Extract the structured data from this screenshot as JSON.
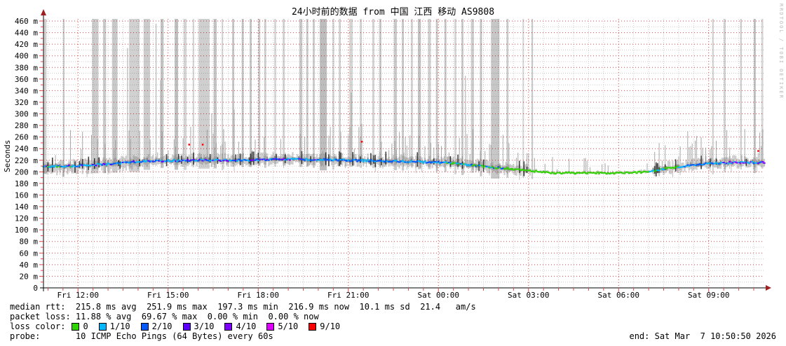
{
  "title": "24小时前的数据 from 中国 江西 移动 AS9808",
  "watermark": "RRDTOOL / TOBI OETIKER",
  "stats": {
    "median_line": "median rtt:  215.8 ms avg  251.9 ms max  197.3 ms min  216.9 ms now  10.1 ms sd  21.4   am/s",
    "loss_line": "packet loss: 11.88 % avg  69.67 % max  0.00 % min  0.00 % now",
    "loss_color_label": "loss color:",
    "probe_line": "probe:       10 ICMP Echo Pings (64 Bytes) every 60s",
    "end_label": "end: Sat Mar  7 10:50:50 2026"
  },
  "loss_legend": [
    {
      "label": "0",
      "color": "#2fd300"
    },
    {
      "label": "1/10",
      "color": "#00b8ff"
    },
    {
      "label": "2/10",
      "color": "#0059ff"
    },
    {
      "label": "3/10",
      "color": "#5e00ff"
    },
    {
      "label": "4/10",
      "color": "#7e00ff"
    },
    {
      "label": "5/10",
      "color": "#dd00ff"
    },
    {
      "label": "9/10",
      "color": "#ff0000"
    }
  ],
  "chart_data": {
    "type": "line",
    "title": "24小时前的数据 from 中国 江西 移动 AS9808",
    "ylabel": "Seconds",
    "unit": "ms",
    "ylim_ms": [
      0,
      465
    ],
    "y_tick_step_ms": 20,
    "y_tick_labels": [
      "0",
      "20 m",
      "40 m",
      "60 m",
      "80 m",
      "100 m",
      "120 m",
      "140 m",
      "160 m",
      "180 m",
      "200 m",
      "220 m",
      "240 m",
      "260 m",
      "280 m",
      "300 m",
      "320 m",
      "340 m",
      "360 m",
      "380 m",
      "400 m",
      "420 m",
      "440 m",
      "460 m"
    ],
    "x_span_min": 1440,
    "x_first_major_min": 69,
    "x_major_interval_min": 180,
    "x_minor_interval_min": 30,
    "x_tick_labels": [
      "Fri 12:00",
      "Fri 15:00",
      "Fri 18:00",
      "Fri 21:00",
      "Sat 00:00",
      "Sat 03:00",
      "Sat 06:00",
      "Sat 09:00"
    ],
    "grid": {
      "major_color": "#dd4444",
      "minor_color": "#cccccc",
      "axis_color": "#000000",
      "arrow_color": "#a02020"
    },
    "stats_summary": {
      "median_rtt_ms": {
        "avg": 215.8,
        "max": 251.9,
        "min": 197.3,
        "now": 216.9,
        "sd": 10.1
      },
      "packet_loss_pct": {
        "avg": 11.88,
        "max": 69.67,
        "min": 0.0,
        "now": 0.0
      }
    },
    "loss_category_colors": {
      "0": "#2fd300",
      "1": "#00b8ff",
      "2": "#0059ff",
      "3": "#5e00ff",
      "4": "#7e00ff",
      "5": "#dd00ff",
      "9": "#ff0000"
    },
    "median_keypoints": [
      [
        0,
        209,
        [
          "1",
          "2",
          "0",
          "4"
        ]
      ],
      [
        60,
        210,
        [
          "1",
          "2",
          "0",
          "4"
        ]
      ],
      [
        120,
        213,
        [
          "1",
          "2",
          "3"
        ]
      ],
      [
        200,
        218,
        [
          "1",
          "2",
          "3"
        ]
      ],
      [
        300,
        220,
        [
          "1",
          "2",
          "3"
        ]
      ],
      [
        400,
        220,
        [
          "1",
          "2",
          "4",
          "3"
        ]
      ],
      [
        480,
        222,
        [
          "2",
          "4",
          "1",
          "3"
        ]
      ],
      [
        560,
        221,
        [
          "1",
          "2",
          "4"
        ]
      ],
      [
        650,
        219,
        [
          "1",
          "2"
        ]
      ],
      [
        720,
        218,
        [
          "1",
          "2"
        ]
      ],
      [
        800,
        216,
        [
          "1",
          "2"
        ]
      ],
      [
        860,
        211,
        [
          "0",
          "1",
          "2"
        ]
      ],
      [
        920,
        206,
        [
          "0",
          "1",
          "2"
        ]
      ],
      [
        980,
        201,
        [
          "0"
        ]
      ],
      [
        1020,
        198,
        [
          "0"
        ]
      ],
      [
        1150,
        198,
        [
          "0"
        ]
      ],
      [
        1210,
        200,
        [
          "0"
        ]
      ],
      [
        1240,
        205,
        [
          "0",
          "1"
        ]
      ],
      [
        1280,
        210,
        [
          "0",
          "1",
          "2"
        ]
      ],
      [
        1320,
        214,
        [
          "1",
          "2"
        ]
      ],
      [
        1370,
        216,
        [
          "1",
          "2",
          "4"
        ]
      ],
      [
        1440,
        216,
        [
          "1",
          "2",
          "4"
        ]
      ]
    ],
    "loss_bars_min": [
      [
        1,
        5
      ],
      [
        39,
        3
      ],
      [
        97,
        13
      ],
      [
        119,
        6
      ],
      [
        137,
        11
      ],
      [
        171,
        21
      ],
      [
        200,
        13
      ],
      [
        234,
        6
      ],
      [
        262,
        7
      ],
      [
        280,
        6
      ],
      [
        298,
        3
      ],
      [
        310,
        22
      ],
      [
        340,
        6
      ],
      [
        356,
        3
      ],
      [
        377,
        4
      ],
      [
        396,
        4
      ],
      [
        412,
        4
      ],
      [
        429,
        4
      ],
      [
        441,
        4
      ],
      [
        461,
        4
      ],
      [
        478,
        4
      ],
      [
        511,
        6
      ],
      [
        525,
        4
      ],
      [
        538,
        4
      ],
      [
        552,
        14
      ],
      [
        577,
        4
      ],
      [
        590,
        4
      ],
      [
        611,
        7
      ],
      [
        632,
        4
      ],
      [
        657,
        4
      ],
      [
        671,
        4
      ],
      [
        700,
        6
      ],
      [
        716,
        4
      ],
      [
        734,
        4
      ],
      [
        748,
        6
      ],
      [
        768,
        6
      ],
      [
        784,
        4
      ],
      [
        801,
        4
      ],
      [
        821,
        4
      ],
      [
        835,
        4
      ],
      [
        854,
        6
      ],
      [
        872,
        4
      ],
      [
        894,
        17
      ],
      [
        925,
        4
      ],
      [
        957,
        3
      ],
      [
        975,
        3
      ],
      [
        1336,
        3
      ],
      [
        1359,
        4
      ],
      [
        1392,
        3
      ],
      [
        1419,
        4
      ],
      [
        1434,
        4
      ]
    ],
    "red_dots": [
      [
        291,
        247
      ],
      [
        318,
        247
      ],
      [
        636,
        252
      ],
      [
        1428,
        236
      ]
    ],
    "green_flat_range_min": [
      975,
      1215
    ]
  }
}
